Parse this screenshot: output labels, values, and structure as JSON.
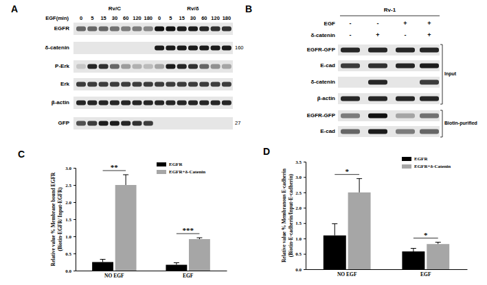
{
  "panels": [
    "A",
    "B",
    "C",
    "D"
  ],
  "blots": [
    {
      "groups": [
        "Rv/C",
        "Rv/δ"
      ],
      "x_label": "EGF(min)",
      "lanes": [
        0,
        5,
        15,
        30,
        60,
        120,
        180,
        0,
        5,
        15,
        30,
        60,
        120,
        180
      ],
      "rows": [
        "EGFR",
        "δ-catenin",
        "P-Erk",
        "Erk",
        "β-actin",
        "GFP"
      ],
      "markers": [
        {
          "row": 1,
          "label": 160
        },
        {
          "row": 5,
          "label": 27
        }
      ]
    },
    {
      "title": "Rv-1",
      "conditions": [
        {
          "name": "EGF",
          "signs": [
            "-",
            "-",
            "+",
            "+"
          ]
        },
        {
          "name": "δ-catenin",
          "signs": [
            "-",
            "+",
            "-",
            "+"
          ]
        }
      ],
      "rows": [
        "EGFR-GFP",
        "E-cad",
        "δ-catenin",
        "β-actin",
        "EGFR-GFP",
        "E-cad"
      ],
      "sections": [
        {
          "label": "Input",
          "rows": [
            0,
            3
          ]
        },
        {
          "label": "Biotin-purified",
          "rows": [
            4,
            5
          ]
        }
      ]
    }
  ],
  "chart_data": [
    {
      "type": "bar",
      "y_label": [
        "Relative value % Membrane bound EGFR",
        "(Biotin-EGFR/ Input-EGFR)"
      ],
      "categories": [
        "NO EGF",
        "EGF"
      ],
      "series": [
        {
          "name": "EGFR",
          "color": "#000000",
          "values": [
            0.25,
            0.17
          ],
          "errors": [
            0.08,
            0.06
          ]
        },
        {
          "name": "EGFR+δ-Catenin",
          "color": "#a6a6a6",
          "values": [
            2.5,
            0.92
          ],
          "errors": [
            0.3,
            0.04
          ]
        }
      ],
      "ylim": [
        0,
        3
      ],
      "yticks": [
        {
          "value": 0,
          "label": "0.0"
        },
        {
          "value": 0.5,
          "label": "0.5"
        },
        {
          "value": 1,
          "label": "1.0"
        },
        {
          "value": 1.5,
          "label": "1.5"
        },
        {
          "value": 2,
          "label": "2.0"
        },
        {
          "value": 2.5,
          "label": "2.5"
        },
        {
          "value": 3,
          "label": "3.0"
        }
      ],
      "legend": "upper right",
      "annotations": [
        "**",
        "***"
      ]
    },
    {
      "type": "bar",
      "y_label": [
        "Relative value % Membranous E-cadherin",
        "(Biotin-E-cadherin/Input-E-cadherin)"
      ],
      "categories": [
        "NO EGF",
        "EGF"
      ],
      "series": [
        {
          "name": "EGFR",
          "color": "#000000",
          "values": [
            1.1,
            0.58
          ],
          "errors": [
            0.38,
            0.1
          ]
        },
        {
          "name": "EGFR+δ-Catenin",
          "color": "#a6a6a6",
          "values": [
            2.5,
            0.82
          ],
          "errors": [
            0.45,
            0.06
          ]
        }
      ],
      "ylim": [
        0,
        3.5
      ],
      "yticks": [
        {
          "value": 0,
          "label": "0.0"
        },
        {
          "value": 0.5,
          "label": "0.5"
        },
        {
          "value": 1,
          "label": "1.0"
        },
        {
          "value": 1.5,
          "label": "1.5"
        },
        {
          "value": 2,
          "label": "2.0"
        },
        {
          "value": 2.5,
          "label": "2.5"
        },
        {
          "value": 3,
          "label": "3.0"
        },
        {
          "value": 3.5,
          "label": "3.5"
        }
      ],
      "legend": "upper right",
      "annotations": [
        "*",
        "*"
      ]
    }
  ]
}
